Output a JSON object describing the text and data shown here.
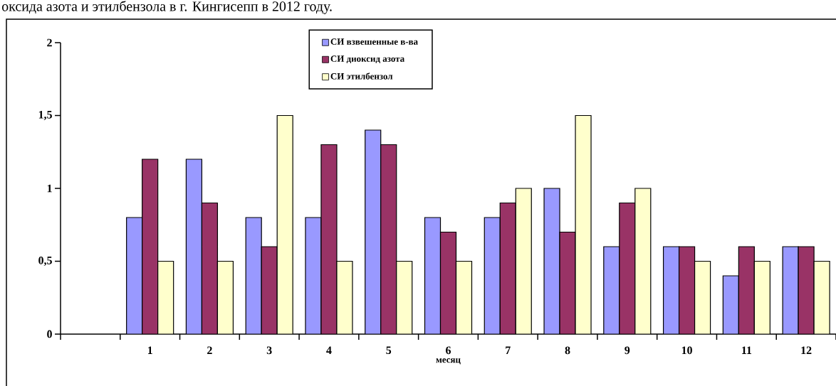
{
  "chart_data": {
    "type": "bar",
    "title": "оксида азота и этилбензола в г. Кингисепп в 2012 году.",
    "xlabel": "месяц",
    "categories": [
      null,
      "1",
      "2",
      "3",
      "4",
      "5",
      "6",
      "7",
      "8",
      "9",
      "10",
      "11",
      "12"
    ],
    "series": [
      {
        "name": "СИ взвешенные  в-ва",
        "color": "#9999ff",
        "values": [
          null,
          0.8,
          1.2,
          0.8,
          0.8,
          1.4,
          0.8,
          0.8,
          1.0,
          0.6,
          0.6,
          0.4,
          0.6
        ]
      },
      {
        "name": "СИ диоксид азота",
        "color": "#993366",
        "values": [
          null,
          1.2,
          0.9,
          0.6,
          1.3,
          1.3,
          0.7,
          0.9,
          0.7,
          0.9,
          0.6,
          0.6,
          0.6
        ]
      },
      {
        "name": "СИ этилбензол",
        "color": "#ffffcc",
        "values": [
          null,
          0.5,
          0.5,
          1.5,
          0.5,
          0.5,
          0.5,
          1.0,
          1.5,
          1.0,
          0.5,
          0.5,
          0.5
        ]
      }
    ],
    "ylim": [
      0,
      2
    ],
    "yticks": [
      0,
      {
        "value": 0.5,
        "label": "0,5"
      },
      1,
      {
        "value": 1.5,
        "label": "1,5"
      },
      2
    ],
    "grid": false,
    "legend": "top"
  }
}
